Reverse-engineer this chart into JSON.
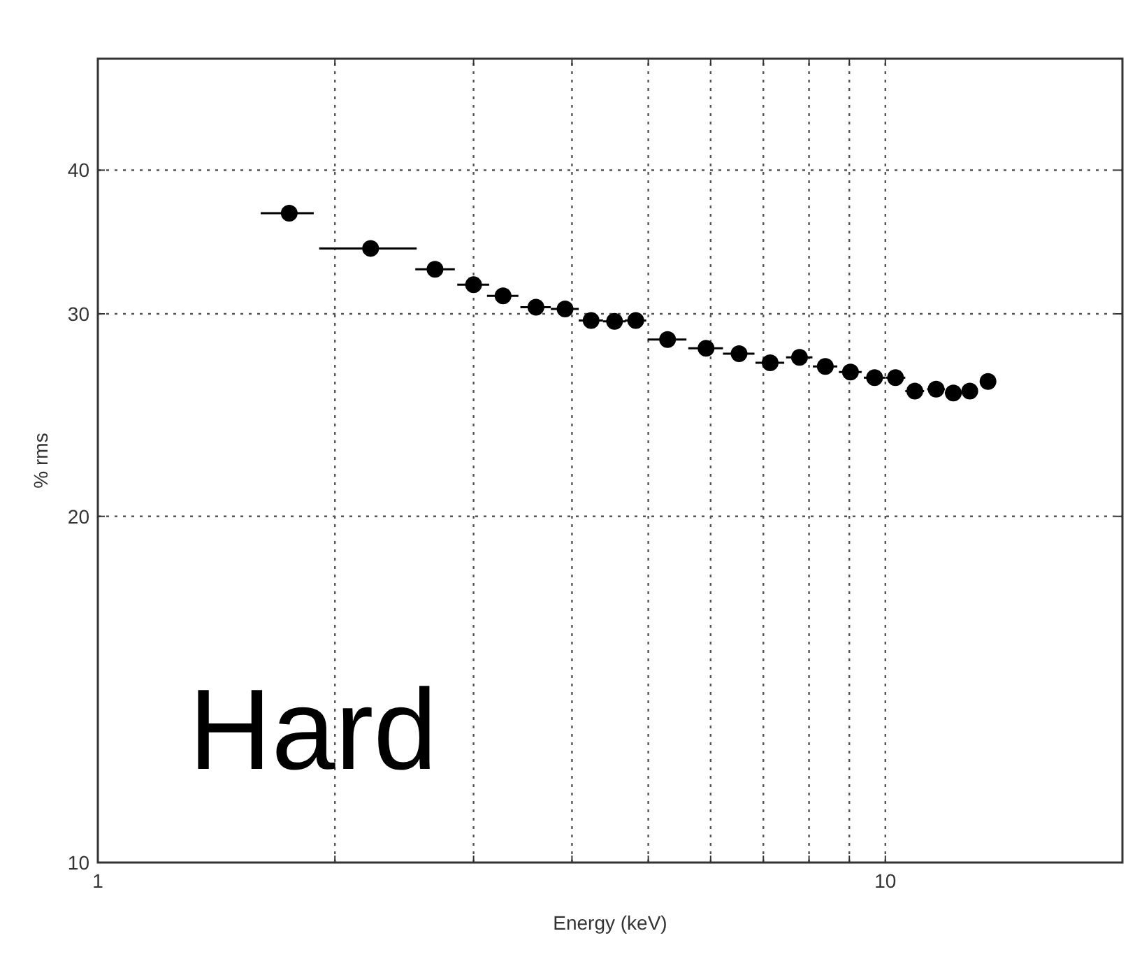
{
  "chart_data": {
    "type": "scatter",
    "xlabel": "Energy (keV)",
    "ylabel": "% rms",
    "annotations": [
      "Hard"
    ],
    "log": "xy",
    "grid": true,
    "marker": "circle",
    "xlim": [
      1,
      20
    ],
    "ylim": [
      10,
      50
    ],
    "xticks": [
      1,
      {
        "value": 2,
        "label": null
      },
      {
        "value": 3,
        "label": null
      },
      {
        "value": 4,
        "label": null
      },
      {
        "value": 5,
        "label": null
      },
      {
        "value": 6,
        "label": null
      },
      {
        "value": 7,
        "label": null
      },
      {
        "value": 8,
        "label": null
      },
      {
        "value": 9,
        "label": null
      },
      10
    ],
    "yticks": [
      10,
      20,
      30,
      40
    ],
    "series": [
      {
        "color": "#000000",
        "x": [
          1.75,
          2.22,
          2.68,
          3.0,
          3.27,
          3.6,
          3.92,
          4.23,
          4.53,
          4.82,
          5.29,
          5.92,
          6.52,
          7.14,
          7.78,
          8.39,
          9.03,
          9.69,
          10.3,
          10.9,
          11.6,
          12.2,
          12.8,
          13.5
        ],
        "values": [
          36.7,
          34.2,
          32.8,
          31.8,
          31.1,
          30.4,
          30.3,
          29.6,
          29.55,
          29.6,
          28.5,
          28.0,
          27.7,
          27.2,
          27.5,
          27.0,
          26.7,
          26.4,
          26.4,
          25.7,
          25.8,
          25.6,
          25.7,
          26.2
        ],
        "xerrors": [
          [
            1.61,
            1.88
          ],
          [
            1.91,
            2.54
          ],
          [
            2.53,
            2.84
          ],
          0.14,
          0.15,
          0.16,
          0.16,
          0.15,
          0.15,
          0.15,
          0.3,
          0.3,
          0.3,
          0.3,
          0.3,
          0.3,
          0.3,
          0.3,
          0.3,
          0.3,
          0.3,
          0.3,
          0.3,
          0.3
        ]
      }
    ]
  }
}
